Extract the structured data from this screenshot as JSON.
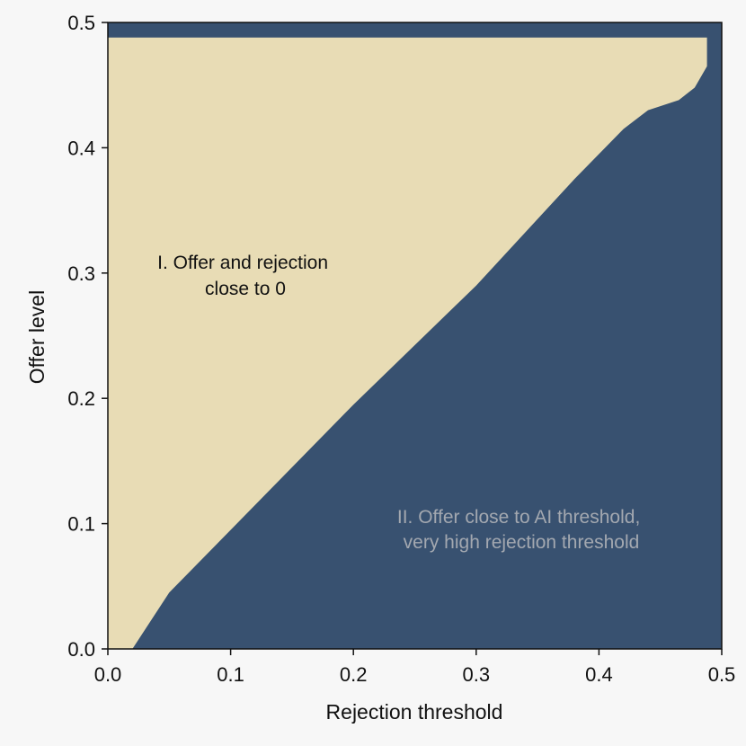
{
  "chart_data": {
    "type": "heatmap",
    "xlabel": "Rejection threshold",
    "ylabel": "Offer level",
    "xlim": [
      0.0,
      0.5
    ],
    "ylim": [
      0.0,
      0.5
    ],
    "x_ticks": [
      "0.0",
      "0.1",
      "0.2",
      "0.3",
      "0.4",
      "0.5"
    ],
    "y_ticks": [
      "0.0",
      "0.1",
      "0.2",
      "0.3",
      "0.4",
      "0.5"
    ],
    "x_tick_values": [
      0.0,
      0.1,
      0.2,
      0.3,
      0.4,
      0.5
    ],
    "y_tick_values": [
      0.0,
      0.1,
      0.2,
      0.3,
      0.4,
      0.5
    ],
    "colors": {
      "region_1": "#e8dcb5",
      "region_2": "#385170",
      "background": "#f7f7f7"
    },
    "regions": [
      {
        "label_lines": [
          "I. Offer and rejection",
          "close to 0"
        ],
        "fill": "#e8dcb5",
        "text_color": "#111111",
        "boundary": {
          "x": [
            0.0,
            0.0,
            0.488,
            0.488,
            0.478,
            0.465,
            0.44,
            0.42,
            0.41,
            0.38,
            0.3,
            0.2,
            0.1,
            0.05,
            0.02,
            0.0
          ],
          "y": [
            0.0,
            0.488,
            0.488,
            0.465,
            0.448,
            0.438,
            0.43,
            0.415,
            0.405,
            0.375,
            0.29,
            0.195,
            0.095,
            0.045,
            0.0,
            0.0
          ]
        }
      },
      {
        "label_lines": [
          "II. Offer close to AI threshold,",
          "very high rejection threshold"
        ],
        "fill": "#385170",
        "text_color": "#a3a8b0"
      }
    ]
  }
}
